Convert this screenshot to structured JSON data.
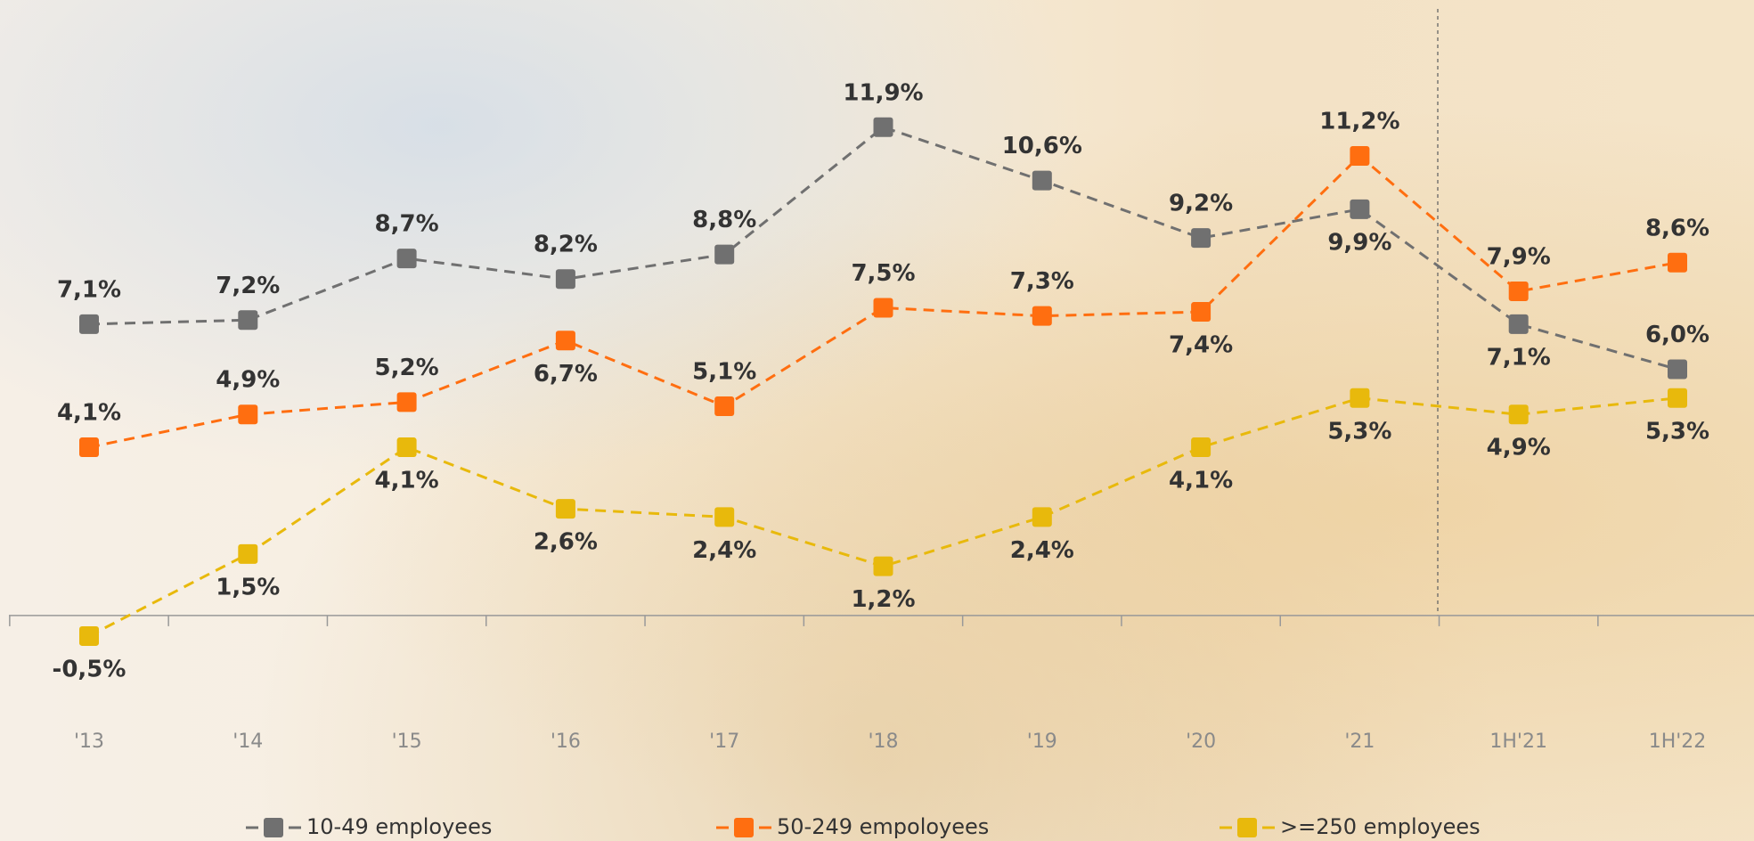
{
  "chart_data": {
    "type": "line",
    "categories": [
      "'13",
      "'14",
      "'15",
      "'16",
      "'17",
      "'18",
      "'19",
      "'20",
      "'21",
      "1H'21",
      "1H'22"
    ],
    "ylim": [
      -1.5,
      15
    ],
    "series": [
      {
        "name": "10-49 employees",
        "color": "#707070",
        "values": [
          7.1,
          7.2,
          8.7,
          8.2,
          8.8,
          11.9,
          10.6,
          9.2,
          9.9,
          7.1,
          6.0
        ],
        "value_labels": [
          "7,1%",
          "7,2%",
          "8,7%",
          "8,2%",
          "8,8%",
          "11,9%",
          "10,6%",
          "9,2%",
          "9,9%",
          "7,1%",
          "6,0%"
        ]
      },
      {
        "name": "50-249 empoloyees",
        "color": "#ff6e10",
        "values": [
          4.1,
          4.9,
          5.2,
          6.7,
          5.1,
          7.5,
          7.3,
          7.4,
          11.2,
          7.9,
          8.6
        ],
        "value_labels": [
          "4,1%",
          "4,9%",
          "5,2%",
          "6,7%",
          "5,1%",
          "7,5%",
          "7,3%",
          "7,4%",
          "11,2%",
          "7,9%",
          "8,6%"
        ]
      },
      {
        "name": ">=250 employees",
        "color": "#e8b90c",
        "values": [
          -0.5,
          1.5,
          4.1,
          2.6,
          2.4,
          1.2,
          2.4,
          4.1,
          5.3,
          4.9,
          5.3
        ],
        "value_labels": [
          "-0,5%",
          "1,5%",
          "4,1%",
          "2,6%",
          "2,4%",
          "1,2%",
          "2,4%",
          "4,1%",
          "5,3%",
          "4,9%",
          "5,3%"
        ]
      }
    ]
  }
}
